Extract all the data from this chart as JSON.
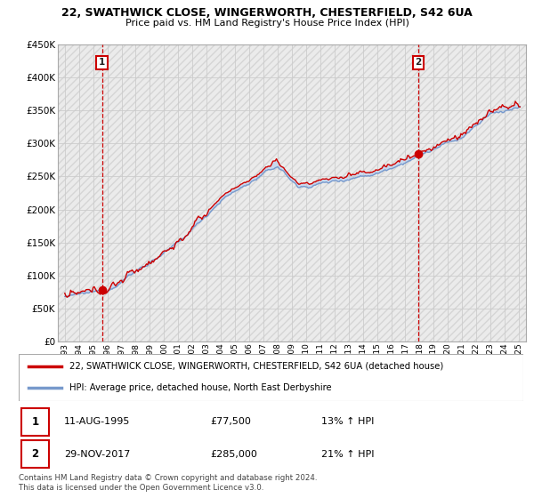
{
  "title1": "22, SWATHWICK CLOSE, WINGERWORTH, CHESTERFIELD, S42 6UA",
  "title2": "Price paid vs. HM Land Registry's House Price Index (HPI)",
  "legend_line1": "22, SWATHWICK CLOSE, WINGERWORTH, CHESTERFIELD, S42 6UA (detached house)",
  "legend_line2": "HPI: Average price, detached house, North East Derbyshire",
  "table_row1_num": "1",
  "table_row1_date": "11-AUG-1995",
  "table_row1_price": "£77,500",
  "table_row1_hpi": "13% ↑ HPI",
  "table_row2_num": "2",
  "table_row2_date": "29-NOV-2017",
  "table_row2_price": "£285,000",
  "table_row2_hpi": "21% ↑ HPI",
  "footnote": "Contains HM Land Registry data © Crown copyright and database right 2024.\nThis data is licensed under the Open Government Licence v3.0.",
  "sale1_year": 1995.62,
  "sale1_price": 77500,
  "sale2_year": 2017.91,
  "sale2_price": 285000,
  "price_line_color": "#cc0000",
  "hpi_line_color": "#7799cc",
  "fill_color": "#c8d8ee",
  "hatch_bg_color": "#e8e8e8",
  "ylim_min": 0,
  "ylim_max": 450000,
  "xlabel_start_year": 1993,
  "xlabel_end_year": 2025
}
